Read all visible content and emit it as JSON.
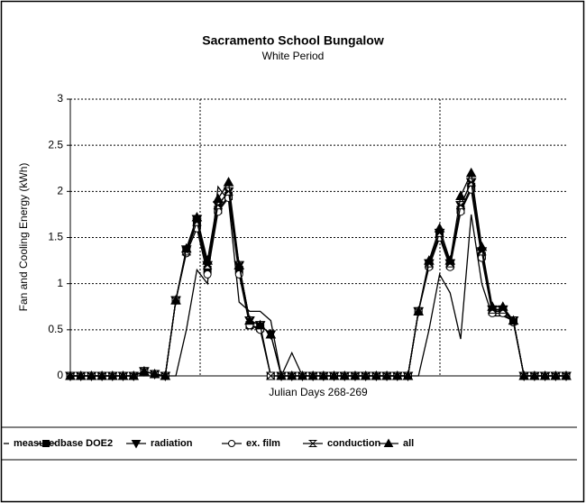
{
  "chart_data": {
    "type": "line",
    "title": "Sacramento School Bungalow",
    "subtitle": "White Period",
    "y_label": "Fan and Cooling Energy (kWh)",
    "x_label": "Julian Days 268-269",
    "categories": [
      null,
      null,
      null,
      null,
      null,
      null,
      null,
      null,
      null,
      null,
      null,
      null,
      null,
      null,
      null,
      null,
      null,
      null,
      null,
      null,
      null,
      null,
      null,
      null,
      null,
      null,
      null,
      null,
      null,
      null,
      null,
      null,
      null,
      null,
      null,
      null,
      null,
      null,
      null,
      null,
      null,
      null,
      null,
      null,
      null,
      null,
      null,
      null
    ],
    "ylim": [
      0,
      3
    ],
    "yticks": [
      0,
      0.5,
      1,
      1.5,
      2,
      2.5,
      3
    ],
    "grid": true,
    "legend": "bottom",
    "series": [
      {
        "name": "measured",
        "color": "#000000",
        "marker": "none",
        "values": [
          0,
          0,
          0,
          0,
          0,
          0,
          0,
          0,
          0,
          0,
          0,
          0.5,
          1.15,
          1.0,
          2.05,
          1.9,
          0.8,
          0.7,
          0.7,
          0.6,
          0,
          0.25,
          0,
          0,
          0,
          0,
          0,
          0,
          0,
          0,
          0,
          0,
          0,
          0,
          0.5,
          1.1,
          0.9,
          0.4,
          1.75,
          1.0,
          0.65,
          0.65,
          0.6,
          0,
          0,
          0,
          0,
          0
        ]
      },
      {
        "name": "base DOE2",
        "color": "#000000",
        "marker": "square",
        "values": [
          0,
          0,
          0,
          0,
          0,
          0,
          0,
          0.05,
          0.02,
          0,
          0.82,
          1.35,
          1.65,
          1.15,
          1.8,
          1.95,
          1.15,
          0.55,
          0.52,
          0,
          0,
          0,
          0,
          0,
          0,
          0,
          0,
          0,
          0,
          0,
          0,
          0,
          0,
          0.7,
          1.2,
          1.52,
          1.2,
          1.8,
          2.05,
          1.3,
          0.7,
          0.7,
          0.6,
          0,
          0,
          0,
          0,
          0
        ]
      },
      {
        "name": "radiation",
        "color": "#000000",
        "marker": "triangle-down",
        "values": [
          0,
          0,
          0,
          0,
          0,
          0,
          0,
          0.05,
          0.02,
          0,
          0.82,
          1.37,
          1.7,
          1.2,
          1.85,
          2.0,
          1.2,
          0.6,
          0.55,
          0.45,
          0,
          0,
          0,
          0,
          0,
          0,
          0,
          0,
          0,
          0,
          0,
          0,
          0,
          0.7,
          1.22,
          1.55,
          1.22,
          1.85,
          2.1,
          1.35,
          0.72,
          0.72,
          0.6,
          0,
          0,
          0,
          0,
          0
        ]
      },
      {
        "name": "ex. film",
        "color": "#000000",
        "marker": "circle",
        "values": [
          0,
          0,
          0,
          0,
          0,
          0,
          0,
          0.05,
          0.02,
          0,
          0.82,
          1.33,
          1.6,
          1.1,
          1.78,
          1.93,
          1.1,
          0.55,
          0.5,
          0,
          0,
          0,
          0,
          0,
          0,
          0,
          0,
          0,
          0,
          0,
          0,
          0,
          0,
          0.7,
          1.18,
          1.5,
          1.18,
          1.78,
          2.02,
          1.28,
          0.68,
          0.68,
          0.58,
          0,
          0,
          0,
          0,
          0
        ]
      },
      {
        "name": "conduction",
        "color": "#000000",
        "marker": "hourglass",
        "values": [
          0,
          0,
          0,
          0,
          0,
          0,
          0,
          0.05,
          0.02,
          0,
          0.82,
          1.35,
          1.67,
          1.2,
          1.85,
          2.0,
          1.2,
          0.6,
          0.55,
          0,
          0,
          0,
          0,
          0,
          0,
          0,
          0,
          0,
          0,
          0,
          0,
          0,
          0,
          0.7,
          1.22,
          1.55,
          1.22,
          1.85,
          2.1,
          1.35,
          0.72,
          0.72,
          0.6,
          0,
          0,
          0,
          0,
          0
        ]
      },
      {
        "name": "all",
        "color": "#000000",
        "marker": "triangle-up",
        "values": [
          0,
          0,
          0,
          0,
          0,
          0,
          0,
          0.05,
          0.02,
          0,
          0.82,
          1.38,
          1.72,
          1.25,
          1.92,
          2.1,
          1.2,
          0.6,
          0.55,
          0.45,
          0,
          0,
          0,
          0,
          0,
          0,
          0,
          0,
          0,
          0,
          0,
          0,
          0,
          0.7,
          1.25,
          1.6,
          1.25,
          1.95,
          2.2,
          1.4,
          0.75,
          0.75,
          0.6,
          0,
          0,
          0,
          0,
          0
        ]
      }
    ]
  }
}
